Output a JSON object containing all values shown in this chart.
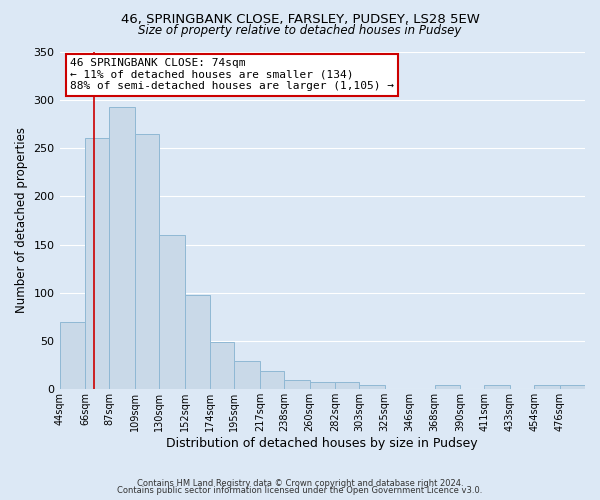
{
  "title1": "46, SPRINGBANK CLOSE, FARSLEY, PUDSEY, LS28 5EW",
  "title2": "Size of property relative to detached houses in Pudsey",
  "xlabel": "Distribution of detached houses by size in Pudsey",
  "ylabel": "Number of detached properties",
  "bar_labels": [
    "44sqm",
    "66sqm",
    "87sqm",
    "109sqm",
    "130sqm",
    "152sqm",
    "174sqm",
    "195sqm",
    "217sqm",
    "238sqm",
    "260sqm",
    "282sqm",
    "303sqm",
    "325sqm",
    "346sqm",
    "368sqm",
    "390sqm",
    "411sqm",
    "433sqm",
    "454sqm",
    "476sqm"
  ],
  "bar_values": [
    70,
    260,
    293,
    265,
    160,
    98,
    49,
    29,
    19,
    10,
    8,
    8,
    4,
    0,
    0,
    4,
    0,
    4,
    0,
    4,
    4
  ],
  "bar_color": "#c9d9e8",
  "bar_edgecolor": "#8fb8d4",
  "ylim": [
    0,
    350
  ],
  "yticks": [
    0,
    50,
    100,
    150,
    200,
    250,
    300,
    350
  ],
  "red_line_x": 74,
  "bin_edges": [
    44,
    66,
    87,
    109,
    130,
    152,
    174,
    195,
    217,
    238,
    260,
    282,
    303,
    325,
    346,
    368,
    390,
    411,
    433,
    454,
    476,
    498
  ],
  "annotation_title": "46 SPRINGBANK CLOSE: 74sqm",
  "annotation_line1": "← 11% of detached houses are smaller (134)",
  "annotation_line2": "88% of semi-detached houses are larger (1,105) →",
  "annotation_box_color": "#ffffff",
  "annotation_box_edgecolor": "#cc0000",
  "footer1": "Contains HM Land Registry data © Crown copyright and database right 2024.",
  "footer2": "Contains public sector information licensed under the Open Government Licence v3.0.",
  "bg_color": "#dce8f5",
  "plot_bg_color": "#dce8f5",
  "grid_color": "#ffffff",
  "title1_fontsize": 9.5,
  "title2_fontsize": 8.5,
  "xlabel_fontsize": 9,
  "ylabel_fontsize": 8.5,
  "red_line_color": "#cc0000"
}
